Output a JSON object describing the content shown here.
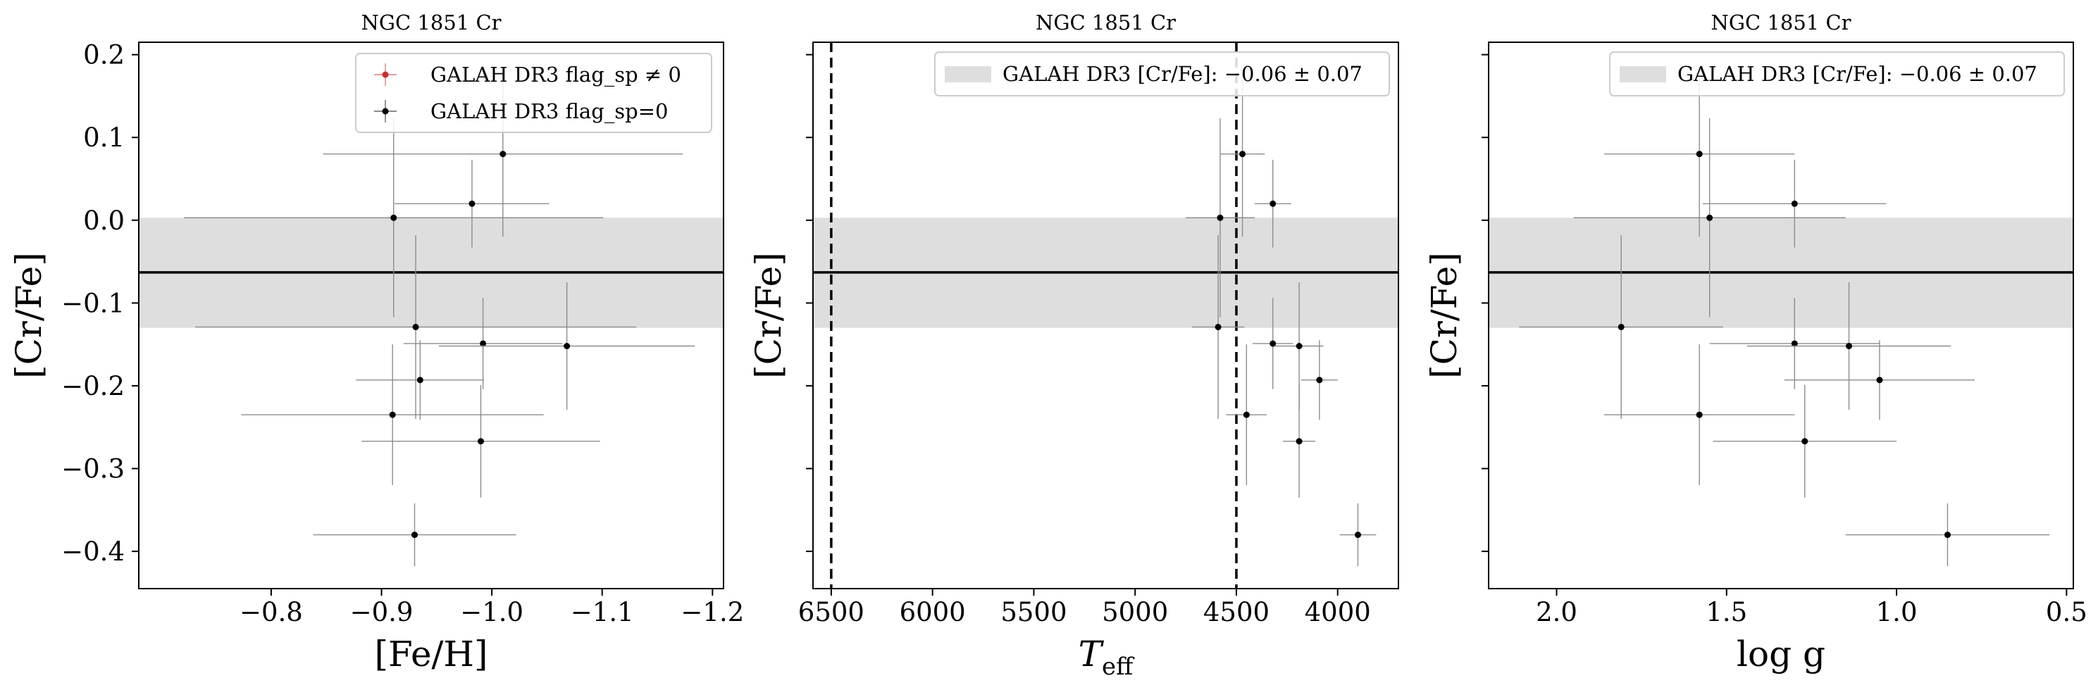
{
  "figure": {
    "panels": [
      {
        "id": "p1",
        "title": "NGC 1851 Cr",
        "xlabel": "[Fe/H]",
        "ylabel": "[Cr/Fe]"
      },
      {
        "id": "p2",
        "title": "NGC 1851 Cr",
        "xlabel_main": "T",
        "xlabel_sub": "eff",
        "ylabel": "[Cr/Fe]"
      },
      {
        "id": "p3",
        "title": "NGC 1851 Cr",
        "xlabel": "log g",
        "ylabel": "[Cr/Fe]"
      }
    ],
    "legend_p1": [
      {
        "label": "GALAH DR3 flag_sp ≠ 0",
        "color": "#d62728"
      },
      {
        "label": "GALAH DR3 flag_sp=0",
        "color": "#000000"
      }
    ],
    "legend_band": {
      "label": "GALAH DR3 [Cr/Fe]: −0.06 ± 0.07"
    }
  },
  "chart_data": [
    {
      "type": "scatter",
      "title": "NGC 1851 Cr",
      "xlabel": "[Fe/H]",
      "ylabel": "[Cr/Fe]",
      "xlim": [
        -0.68,
        -1.21
      ],
      "ylim": [
        -0.445,
        0.215
      ],
      "xticks": [
        -0.8,
        -0.9,
        -1.0,
        -1.1,
        -1.2
      ],
      "xtick_labels": [
        "−0.8",
        "−0.9",
        "−1.0",
        "−1.1",
        "−1.2"
      ],
      "yticks": [
        0.2,
        0.1,
        0.0,
        -0.1,
        -0.2,
        -0.3,
        -0.4
      ],
      "ytick_labels": [
        "0.2",
        "0.1",
        "0.0",
        "−0.1",
        "−0.2",
        "−0.3",
        "−0.4"
      ],
      "reference": {
        "mean": -0.063,
        "low": -0.13,
        "high": 0.003
      },
      "legend": "top-right",
      "series": [
        {
          "name": "GALAH DR3 flag_sp ≠ 0",
          "points": []
        },
        {
          "name": "GALAH DR3 flag_sp=0",
          "points": [
            {
              "x": -1.01,
              "y": 0.08,
              "xerr": 0.163,
              "yerr": 0.1
            },
            {
              "x": -0.982,
              "y": 0.02,
              "xerr": 0.07,
              "yerr": 0.053
            },
            {
              "x": -0.911,
              "y": 0.003,
              "xerr": 0.19,
              "yerr": 0.12
            },
            {
              "x": -0.931,
              "y": -0.129,
              "xerr": 0.2,
              "yerr": 0.111
            },
            {
              "x": -0.992,
              "y": -0.149,
              "xerr": 0.072,
              "yerr": 0.055
            },
            {
              "x": -1.068,
              "y": -0.152,
              "xerr": 0.116,
              "yerr": 0.077
            },
            {
              "x": -0.935,
              "y": -0.193,
              "xerr": 0.058,
              "yerr": 0.048
            },
            {
              "x": -0.91,
              "y": -0.235,
              "xerr": 0.137,
              "yerr": 0.085
            },
            {
              "x": -0.99,
              "y": -0.267,
              "xerr": 0.108,
              "yerr": 0.068
            },
            {
              "x": -0.93,
              "y": -0.38,
              "xerr": 0.092,
              "yerr": 0.038
            }
          ]
        }
      ]
    },
    {
      "type": "scatter",
      "title": "NGC 1851 Cr",
      "xlabel": "T_eff",
      "ylabel": "[Cr/Fe]",
      "xlim": [
        6590,
        3700
      ],
      "ylim": [
        -0.445,
        0.215
      ],
      "xticks": [
        6500,
        6000,
        5500,
        5000,
        4500,
        4000
      ],
      "xtick_labels": [
        "6500",
        "6000",
        "5500",
        "5000",
        "4500",
        "4000"
      ],
      "yticks": [
        0.2,
        0.1,
        0.0,
        -0.1,
        -0.2,
        -0.3,
        -0.4
      ],
      "reference": {
        "mean": -0.063,
        "low": -0.13,
        "high": 0.003
      },
      "vlines": [
        6500,
        4500
      ],
      "legend": "top-right",
      "series": [
        {
          "name": "GALAH DR3 flag_sp=0",
          "points": [
            {
              "x": 4470,
              "y": 0.08,
              "xerr": 110,
              "yerr": 0.1
            },
            {
              "x": 4320,
              "y": 0.02,
              "xerr": 90,
              "yerr": 0.053
            },
            {
              "x": 4580,
              "y": 0.003,
              "xerr": 170,
              "yerr": 0.12
            },
            {
              "x": 4590,
              "y": -0.129,
              "xerr": 130,
              "yerr": 0.111
            },
            {
              "x": 4320,
              "y": -0.149,
              "xerr": 100,
              "yerr": 0.055
            },
            {
              "x": 4190,
              "y": -0.152,
              "xerr": 120,
              "yerr": 0.077
            },
            {
              "x": 4090,
              "y": -0.193,
              "xerr": 90,
              "yerr": 0.048
            },
            {
              "x": 4450,
              "y": -0.235,
              "xerr": 100,
              "yerr": 0.085
            },
            {
              "x": 4190,
              "y": -0.267,
              "xerr": 80,
              "yerr": 0.068
            },
            {
              "x": 3900,
              "y": -0.38,
              "xerr": 90,
              "yerr": 0.038
            }
          ]
        }
      ]
    },
    {
      "type": "scatter",
      "title": "NGC 1851 Cr",
      "xlabel": "log g",
      "ylabel": "[Cr/Fe]",
      "xlim": [
        2.2,
        0.48
      ],
      "ylim": [
        -0.445,
        0.215
      ],
      "xticks": [
        2.0,
        1.5,
        1.0,
        0.5
      ],
      "xtick_labels": [
        "2.0",
        "1.5",
        "1.0",
        "0.5"
      ],
      "yticks": [
        0.2,
        0.1,
        0.0,
        -0.1,
        -0.2,
        -0.3,
        -0.4
      ],
      "reference": {
        "mean": -0.063,
        "low": -0.13,
        "high": 0.003
      },
      "legend": "top-right",
      "series": [
        {
          "name": "GALAH DR3 flag_sp=0",
          "points": [
            {
              "x": 1.58,
              "y": 0.08,
              "xerr": 0.28,
              "yerr": 0.1
            },
            {
              "x": 1.3,
              "y": 0.02,
              "xerr": 0.27,
              "yerr": 0.053
            },
            {
              "x": 1.55,
              "y": 0.003,
              "xerr": 0.4,
              "yerr": 0.12
            },
            {
              "x": 1.81,
              "y": -0.129,
              "xerr": 0.3,
              "yerr": 0.111
            },
            {
              "x": 1.3,
              "y": -0.149,
              "xerr": 0.25,
              "yerr": 0.055
            },
            {
              "x": 1.14,
              "y": -0.152,
              "xerr": 0.3,
              "yerr": 0.077
            },
            {
              "x": 1.05,
              "y": -0.193,
              "xerr": 0.28,
              "yerr": 0.048
            },
            {
              "x": 1.58,
              "y": -0.235,
              "xerr": 0.28,
              "yerr": 0.085
            },
            {
              "x": 1.27,
              "y": -0.267,
              "xerr": 0.27,
              "yerr": 0.068
            },
            {
              "x": 0.85,
              "y": -0.38,
              "xerr": 0.3,
              "yerr": 0.038
            }
          ]
        }
      ]
    }
  ]
}
